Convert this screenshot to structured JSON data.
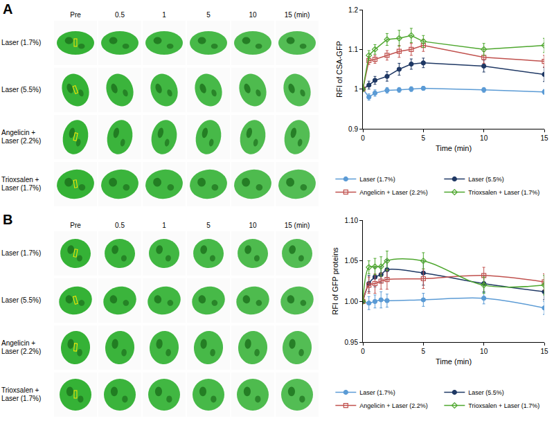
{
  "image_panels": [
    {
      "label": "A",
      "columns": [
        "Pre",
        "0.5",
        "1",
        "5",
        "10",
        "15 (min)"
      ],
      "rows": [
        "Laser (1.7%)",
        "Laser (5.5%)",
        "Angelicin + Laser (2.2%)",
        "Trioxsalen + Laser (1.7%)"
      ]
    },
    {
      "label": "B",
      "columns": [
        "Pre",
        "0.5",
        "1",
        "5",
        "10",
        "15 (min)"
      ],
      "rows": [
        "Laser (1.7%)",
        "Laser (5.5%)",
        "Angelicin + Laser (2.2%)",
        "Trioxsalen + Laser (1.7%)"
      ]
    }
  ],
  "chart_data": [
    {
      "type": "line",
      "x_label": "Time (min)",
      "y_label": "RFI of CSA-GFP",
      "xlim": [
        0,
        15
      ],
      "xticks": [
        0,
        5,
        10,
        15
      ],
      "ylim": [
        0.9,
        1.2
      ],
      "yticks": [
        0.9,
        1,
        1.1,
        1.2
      ],
      "grid": false,
      "legend": "bottom",
      "x": [
        0,
        0.5,
        1,
        2,
        3,
        4,
        5,
        10,
        15
      ],
      "series": [
        {
          "name": "Laser (1.7%)",
          "color": "#5b9bd5",
          "marker": "circle",
          "line_style": "solid",
          "values": [
            1.0,
            0.98,
            0.99,
            0.997,
            0.998,
            1.0,
            1.002,
            0.998,
            0.993
          ],
          "errors": [
            0,
            0.008,
            0.008,
            0.007,
            0.006,
            0.006,
            0.005,
            0.006,
            0.006
          ]
        },
        {
          "name": "Laser (5.5%)",
          "color": "#1f3864",
          "marker": "circle",
          "line_style": "solid",
          "values": [
            1.0,
            1.01,
            1.022,
            1.032,
            1.05,
            1.063,
            1.066,
            1.058,
            1.037
          ],
          "errors": [
            0,
            0.01,
            0.01,
            0.012,
            0.015,
            0.013,
            0.012,
            0.015,
            0.018
          ]
        },
        {
          "name": "Angelicin + Laser (2.2%)",
          "color": "#c0504d",
          "marker": "square-open",
          "line_style": "solid",
          "values": [
            1.0,
            1.072,
            1.075,
            1.085,
            1.095,
            1.1,
            1.11,
            1.08,
            1.07
          ],
          "errors": [
            0,
            0.01,
            0.01,
            0.012,
            0.015,
            0.015,
            0.015,
            0.015,
            0.015
          ]
        },
        {
          "name": "Trioxsalen + Laser (1.7%)",
          "color": "#4ea72e",
          "marker": "diamond-open",
          "line_style": "solid",
          "values": [
            1.0,
            1.085,
            1.1,
            1.125,
            1.128,
            1.135,
            1.12,
            1.1,
            1.11
          ],
          "errors": [
            0,
            0.012,
            0.012,
            0.015,
            0.02,
            0.018,
            0.015,
            0.015,
            0.018
          ]
        }
      ]
    },
    {
      "type": "line",
      "x_label": "Time (min)",
      "y_label": "RFI of GFP proteins",
      "xlim": [
        0,
        15
      ],
      "xticks": [
        0,
        5,
        10,
        15
      ],
      "ylim": [
        0.95,
        1.1
      ],
      "yticks": [
        0.95,
        {
          "value": 1,
          "label": "1.00"
        },
        1.05,
        {
          "value": 1.1,
          "label": "1.10"
        }
      ],
      "grid": false,
      "legend": "bottom",
      "x": [
        0,
        0.5,
        1,
        1.5,
        2,
        5,
        10,
        15
      ],
      "series": [
        {
          "name": "Laser (1.7%)",
          "color": "#5b9bd5",
          "marker": "circle",
          "line_style": "smooth",
          "values": [
            1.0,
            0.998,
            1.0,
            1.002,
            1.001,
            1.002,
            1.004,
            0.992
          ],
          "errors": [
            0,
            0.008,
            0.008,
            0.01,
            0.008,
            0.008,
            0.007,
            0.008
          ]
        },
        {
          "name": "Laser (5.5%)",
          "color": "#1f3864",
          "marker": "circle",
          "line_style": "smooth",
          "values": [
            1.0,
            1.022,
            1.03,
            1.033,
            1.039,
            1.035,
            1.022,
            1.012
          ],
          "errors": [
            0,
            0.01,
            0.012,
            0.01,
            0.012,
            0.015,
            0.01,
            0.01
          ]
        },
        {
          "name": "Angelicin + Laser (2.2%)",
          "color": "#c0504d",
          "marker": "square-open",
          "line_style": "smooth",
          "values": [
            1.0,
            1.02,
            1.022,
            1.025,
            1.027,
            1.028,
            1.032,
            1.024
          ],
          "errors": [
            0,
            0.01,
            0.012,
            0.01,
            0.012,
            0.012,
            0.01,
            0.01
          ]
        },
        {
          "name": "Trioxsalen + Laser (1.7%)",
          "color": "#4ea72e",
          "marker": "diamond-open",
          "line_style": "smooth",
          "values": [
            1.0,
            1.042,
            1.043,
            1.043,
            1.05,
            1.05,
            1.02,
            1.02
          ],
          "errors": [
            0,
            0.008,
            0.01,
            0.012,
            0.012,
            0.01,
            0.01,
            0.012
          ]
        }
      ]
    }
  ]
}
